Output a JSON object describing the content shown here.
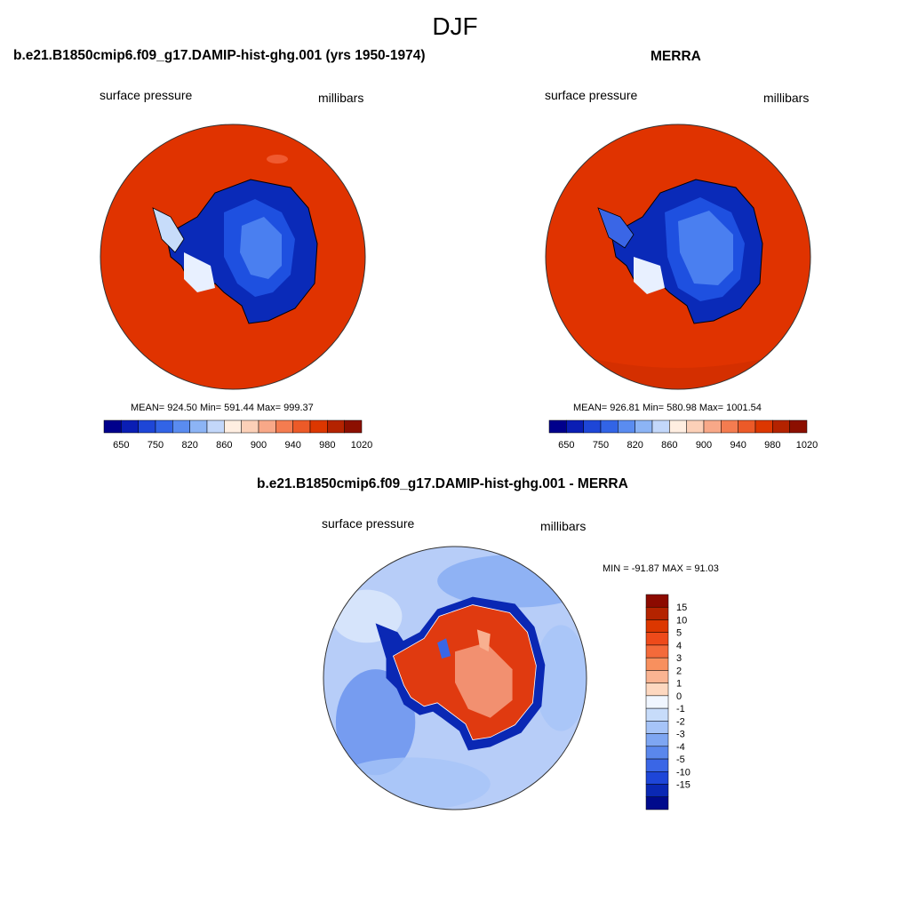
{
  "figure": {
    "title": "DJF"
  },
  "panels": [
    {
      "title": "b.e21.B1850cmip6.f09_g17.DAMIP-hist-ghg.001 (yrs 1950-1974)",
      "left_label": "surface pressure",
      "right_label": "millibars",
      "stats": "MEAN= 924.50  Min= 591.44  Max= 999.37"
    },
    {
      "title": "MERRA",
      "left_label": "surface pressure",
      "right_label": "millibars",
      "stats": "MEAN= 926.81  Min= 580.98  Max= 1001.54"
    },
    {
      "title": "b.e21.B1850cmip6.f09_g17.DAMIP-hist-ghg.001 - MERRA",
      "left_label": "surface pressure",
      "right_label": "millibars",
      "stats": "MIN = -91.87 MAX =  91.03"
    }
  ],
  "abs_colorbar": {
    "orientation": "horizontal",
    "colors": [
      "#00008c",
      "#0a1eb4",
      "#1e46d7",
      "#3264e6",
      "#5a8cf0",
      "#8cb4f5",
      "#c3d7fa",
      "#ffeee1",
      "#fcd0b8",
      "#f8a888",
      "#f47c50",
      "#ec5a28",
      "#dc3700",
      "#b42300",
      "#8c0f00"
    ],
    "tick_labels": [
      "650",
      "750",
      "820",
      "860",
      "900",
      "940",
      "980",
      "1020"
    ]
  },
  "diff_colorbar": {
    "orientation": "vertical",
    "colors": [
      "#8c0a00",
      "#b42300",
      "#dc3700",
      "#ee4a1a",
      "#f46a3a",
      "#f8905e",
      "#fab492",
      "#fdd8c0",
      "#f0f6ff",
      "#c7dcfa",
      "#a6c4f8",
      "#7ea6f2",
      "#5a87ec",
      "#3a66e6",
      "#1e46d8",
      "#0a28b4",
      "#000a8c"
    ],
    "tick_labels": [
      "15",
      "10",
      "5",
      "4",
      "3",
      "2",
      "1",
      "0",
      "-1",
      "-2",
      "-3",
      "-4",
      "-5",
      "-10",
      "-15"
    ]
  },
  "maps": [
    {
      "name": "model-map",
      "background": "#e03300",
      "continent": [
        "#0a2ab8",
        "#1e50e0",
        "#4a7ff0"
      ]
    },
    {
      "name": "merra-map",
      "background": "#e03300",
      "continent": [
        "#0a2ab8",
        "#1e50e0",
        "#4a7ff0"
      ]
    },
    {
      "name": "difference-map",
      "background": "#b7cdf8",
      "continent": [
        "#e03a10",
        "#f29070"
      ]
    }
  ]
}
